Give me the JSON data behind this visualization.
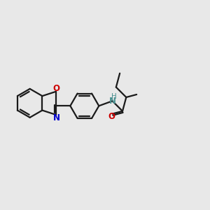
{
  "background_color": "#e8e8e8",
  "bond_color": "#1a1a1a",
  "nitrogen_color": "#0000cc",
  "oxygen_color": "#cc0000",
  "nh_color": "#4a9090",
  "line_width": 1.6,
  "figsize": [
    3.0,
    3.0
  ],
  "dpi": 100,
  "xlim": [
    -4.2,
    4.8
  ],
  "ylim": [
    -2.5,
    2.5
  ]
}
